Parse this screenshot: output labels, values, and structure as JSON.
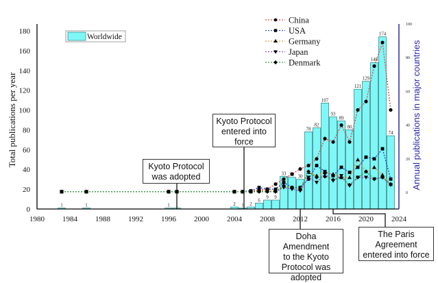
{
  "chart_data": {
    "type": "bar",
    "title": "",
    "xlabel": "",
    "ylabel": "Total publications per year",
    "y2label": "Annual publications in major countries",
    "xlim": [
      1980,
      2024
    ],
    "ylim": [
      0,
      180
    ],
    "y2lim": [
      0,
      100
    ],
    "x_ticks": [
      1980,
      1984,
      1988,
      1992,
      1996,
      2000,
      2004,
      2008,
      2012,
      2016,
      2020,
      2024
    ],
    "y_ticks": [
      0,
      20,
      40,
      60,
      80,
      100,
      120,
      140,
      160,
      180
    ],
    "y2_ticks": [
      0,
      20,
      40,
      60,
      80,
      100
    ],
    "legend_bar": {
      "label": "Worldwide",
      "placement": "top-left"
    },
    "legend_lines": {
      "placement": "top-center"
    },
    "bars": {
      "name": "Worldwide",
      "color": "#7ff7f7",
      "years": [
        1983,
        1986,
        1996,
        1997,
        2004,
        2005,
        2006,
        2007,
        2008,
        2009,
        2010,
        2011,
        2012,
        2013,
        2014,
        2015,
        2016,
        2017,
        2018,
        2019,
        2020,
        2021,
        2022,
        2023
      ],
      "values": [
        1,
        1,
        1,
        1,
        2,
        1,
        2,
        6,
        9,
        9,
        33,
        32,
        30,
        78,
        82,
        107,
        93,
        89,
        80,
        121,
        129,
        148,
        174,
        74
      ]
    },
    "line_years": [
      1983,
      1986,
      1996,
      1997,
      2004,
      2005,
      2006,
      2007,
      2008,
      2009,
      2010,
      2011,
      2012,
      2013,
      2014,
      2015,
      2016,
      2017,
      2018,
      2019,
      2020,
      2021,
      2022,
      2023
    ],
    "series": [
      {
        "name": "China",
        "color": "#d9534f",
        "marker": "circle",
        "values": [
          0.5,
          0.5,
          0.5,
          0.5,
          0.5,
          0.5,
          1,
          1.5,
          2,
          5,
          8,
          11,
          14,
          16,
          20,
          32,
          30,
          40,
          30,
          49,
          54,
          75,
          89,
          49
        ]
      },
      {
        "name": "USA",
        "color": "#2a4fd6",
        "marker": "square",
        "values": [
          0.5,
          0.5,
          0.5,
          0.5,
          0.5,
          0.5,
          1,
          3,
          2,
          2,
          6,
          3,
          3,
          8,
          16,
          12.5,
          10,
          15,
          12,
          15,
          21,
          20,
          26,
          8
        ]
      },
      {
        "name": "Germany",
        "color": "#e0a040",
        "marker": "triangle-up",
        "values": [
          0.5,
          0.5,
          0.5,
          0.5,
          0.5,
          0.5,
          0.5,
          1,
          1,
          1,
          4,
          3,
          2,
          12,
          10,
          12,
          11,
          9,
          9,
          19.5,
          12.5,
          15,
          10.5,
          5
        ]
      },
      {
        "name": "Japan",
        "color": "#9b4fd0",
        "marker": "triangle-down",
        "values": [
          0.5,
          0.5,
          0.5,
          0.5,
          0.5,
          0.5,
          0.5,
          0.5,
          0.5,
          0.5,
          3,
          2,
          1,
          9,
          6,
          11,
          7,
          10,
          4,
          9,
          9,
          8,
          9,
          4.5
        ]
      },
      {
        "name": "Denmark",
        "color": "#3a9a4a",
        "marker": "diamond",
        "values": [
          0.5,
          0.5,
          0.5,
          0.5,
          0.5,
          0.5,
          0.5,
          0.5,
          0.5,
          0.5,
          4,
          3,
          2,
          12.5,
          9,
          9.5,
          7.5,
          9,
          4.5,
          9,
          12.5,
          8,
          9,
          5
        ]
      }
    ],
    "annotations": [
      {
        "id": "kyoto-adopted",
        "text_lines": [
          "Kyoto Protocol",
          "was adopted"
        ],
        "year": 1997
      },
      {
        "id": "kyoto-force",
        "text_lines": [
          "Kyoto Protocol",
          "entered into",
          "force"
        ],
        "year": 2005
      },
      {
        "id": "doha",
        "text_lines": [
          "Doha Amendment",
          "to the Kyoto",
          "Protocol was",
          "adopted"
        ],
        "year": 2012
      },
      {
        "id": "paris",
        "text_lines": [
          "The Paris",
          "Agreement",
          "entered into force"
        ],
        "year": 2016
      }
    ],
    "grid": false
  }
}
